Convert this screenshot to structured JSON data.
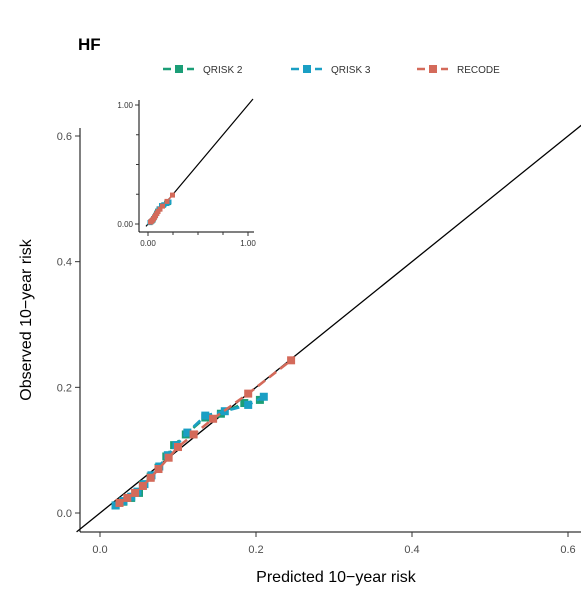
{
  "chart_data": {
    "type": "line",
    "title": "HF",
    "xlabel": "Predicted 10−year risk",
    "ylabel": "Observed 10−year risk",
    "xlim": [
      -0.03,
      0.62
    ],
    "ylim": [
      -0.03,
      0.65
    ],
    "x_ticks": [
      "0.0",
      "0.2",
      "0.4",
      "0.6"
    ],
    "y_ticks": [
      "0.0",
      "0.2",
      "0.4",
      "0.6"
    ],
    "reference_line": "identity",
    "legend": {
      "position": "top"
    },
    "grid": false,
    "series": [
      {
        "name": "QRISK 2",
        "color": "#1b9e77",
        "points": [
          [
            0.02,
            0.012
          ],
          [
            0.03,
            0.018
          ],
          [
            0.04,
            0.024
          ],
          [
            0.05,
            0.032
          ],
          [
            0.055,
            0.045
          ],
          [
            0.065,
            0.058
          ],
          [
            0.075,
            0.072
          ],
          [
            0.085,
            0.09
          ],
          [
            0.095,
            0.108
          ],
          [
            0.11,
            0.125
          ],
          [
            0.135,
            0.152
          ],
          [
            0.155,
            0.158
          ],
          [
            0.185,
            0.175
          ],
          [
            0.205,
            0.18
          ]
        ]
      },
      {
        "name": "QRISK 3",
        "color": "#1a9fc4",
        "points": [
          [
            0.02,
            0.012
          ],
          [
            0.03,
            0.019
          ],
          [
            0.04,
            0.026
          ],
          [
            0.048,
            0.034
          ],
          [
            0.057,
            0.046
          ],
          [
            0.066,
            0.06
          ],
          [
            0.076,
            0.074
          ],
          [
            0.087,
            0.092
          ],
          [
            0.098,
            0.108
          ],
          [
            0.112,
            0.128
          ],
          [
            0.135,
            0.155
          ],
          [
            0.16,
            0.162
          ],
          [
            0.19,
            0.172
          ],
          [
            0.21,
            0.185
          ]
        ]
      },
      {
        "name": "RECODE",
        "color": "#d46a5a",
        "points": [
          [
            0.025,
            0.016
          ],
          [
            0.035,
            0.024
          ],
          [
            0.045,
            0.032
          ],
          [
            0.055,
            0.043
          ],
          [
            0.065,
            0.056
          ],
          [
            0.075,
            0.07
          ],
          [
            0.088,
            0.088
          ],
          [
            0.1,
            0.105
          ],
          [
            0.12,
            0.125
          ],
          [
            0.145,
            0.15
          ],
          [
            0.19,
            0.19
          ],
          [
            0.245,
            0.243
          ]
        ]
      }
    ],
    "inset": {
      "xlim": [
        -0.02,
        1.0
      ],
      "ylim": [
        -0.02,
        1.0
      ],
      "x_ticks": [
        "0.00",
        "1.00"
      ],
      "y_ticks": [
        "0.00",
        "1.00"
      ]
    }
  }
}
